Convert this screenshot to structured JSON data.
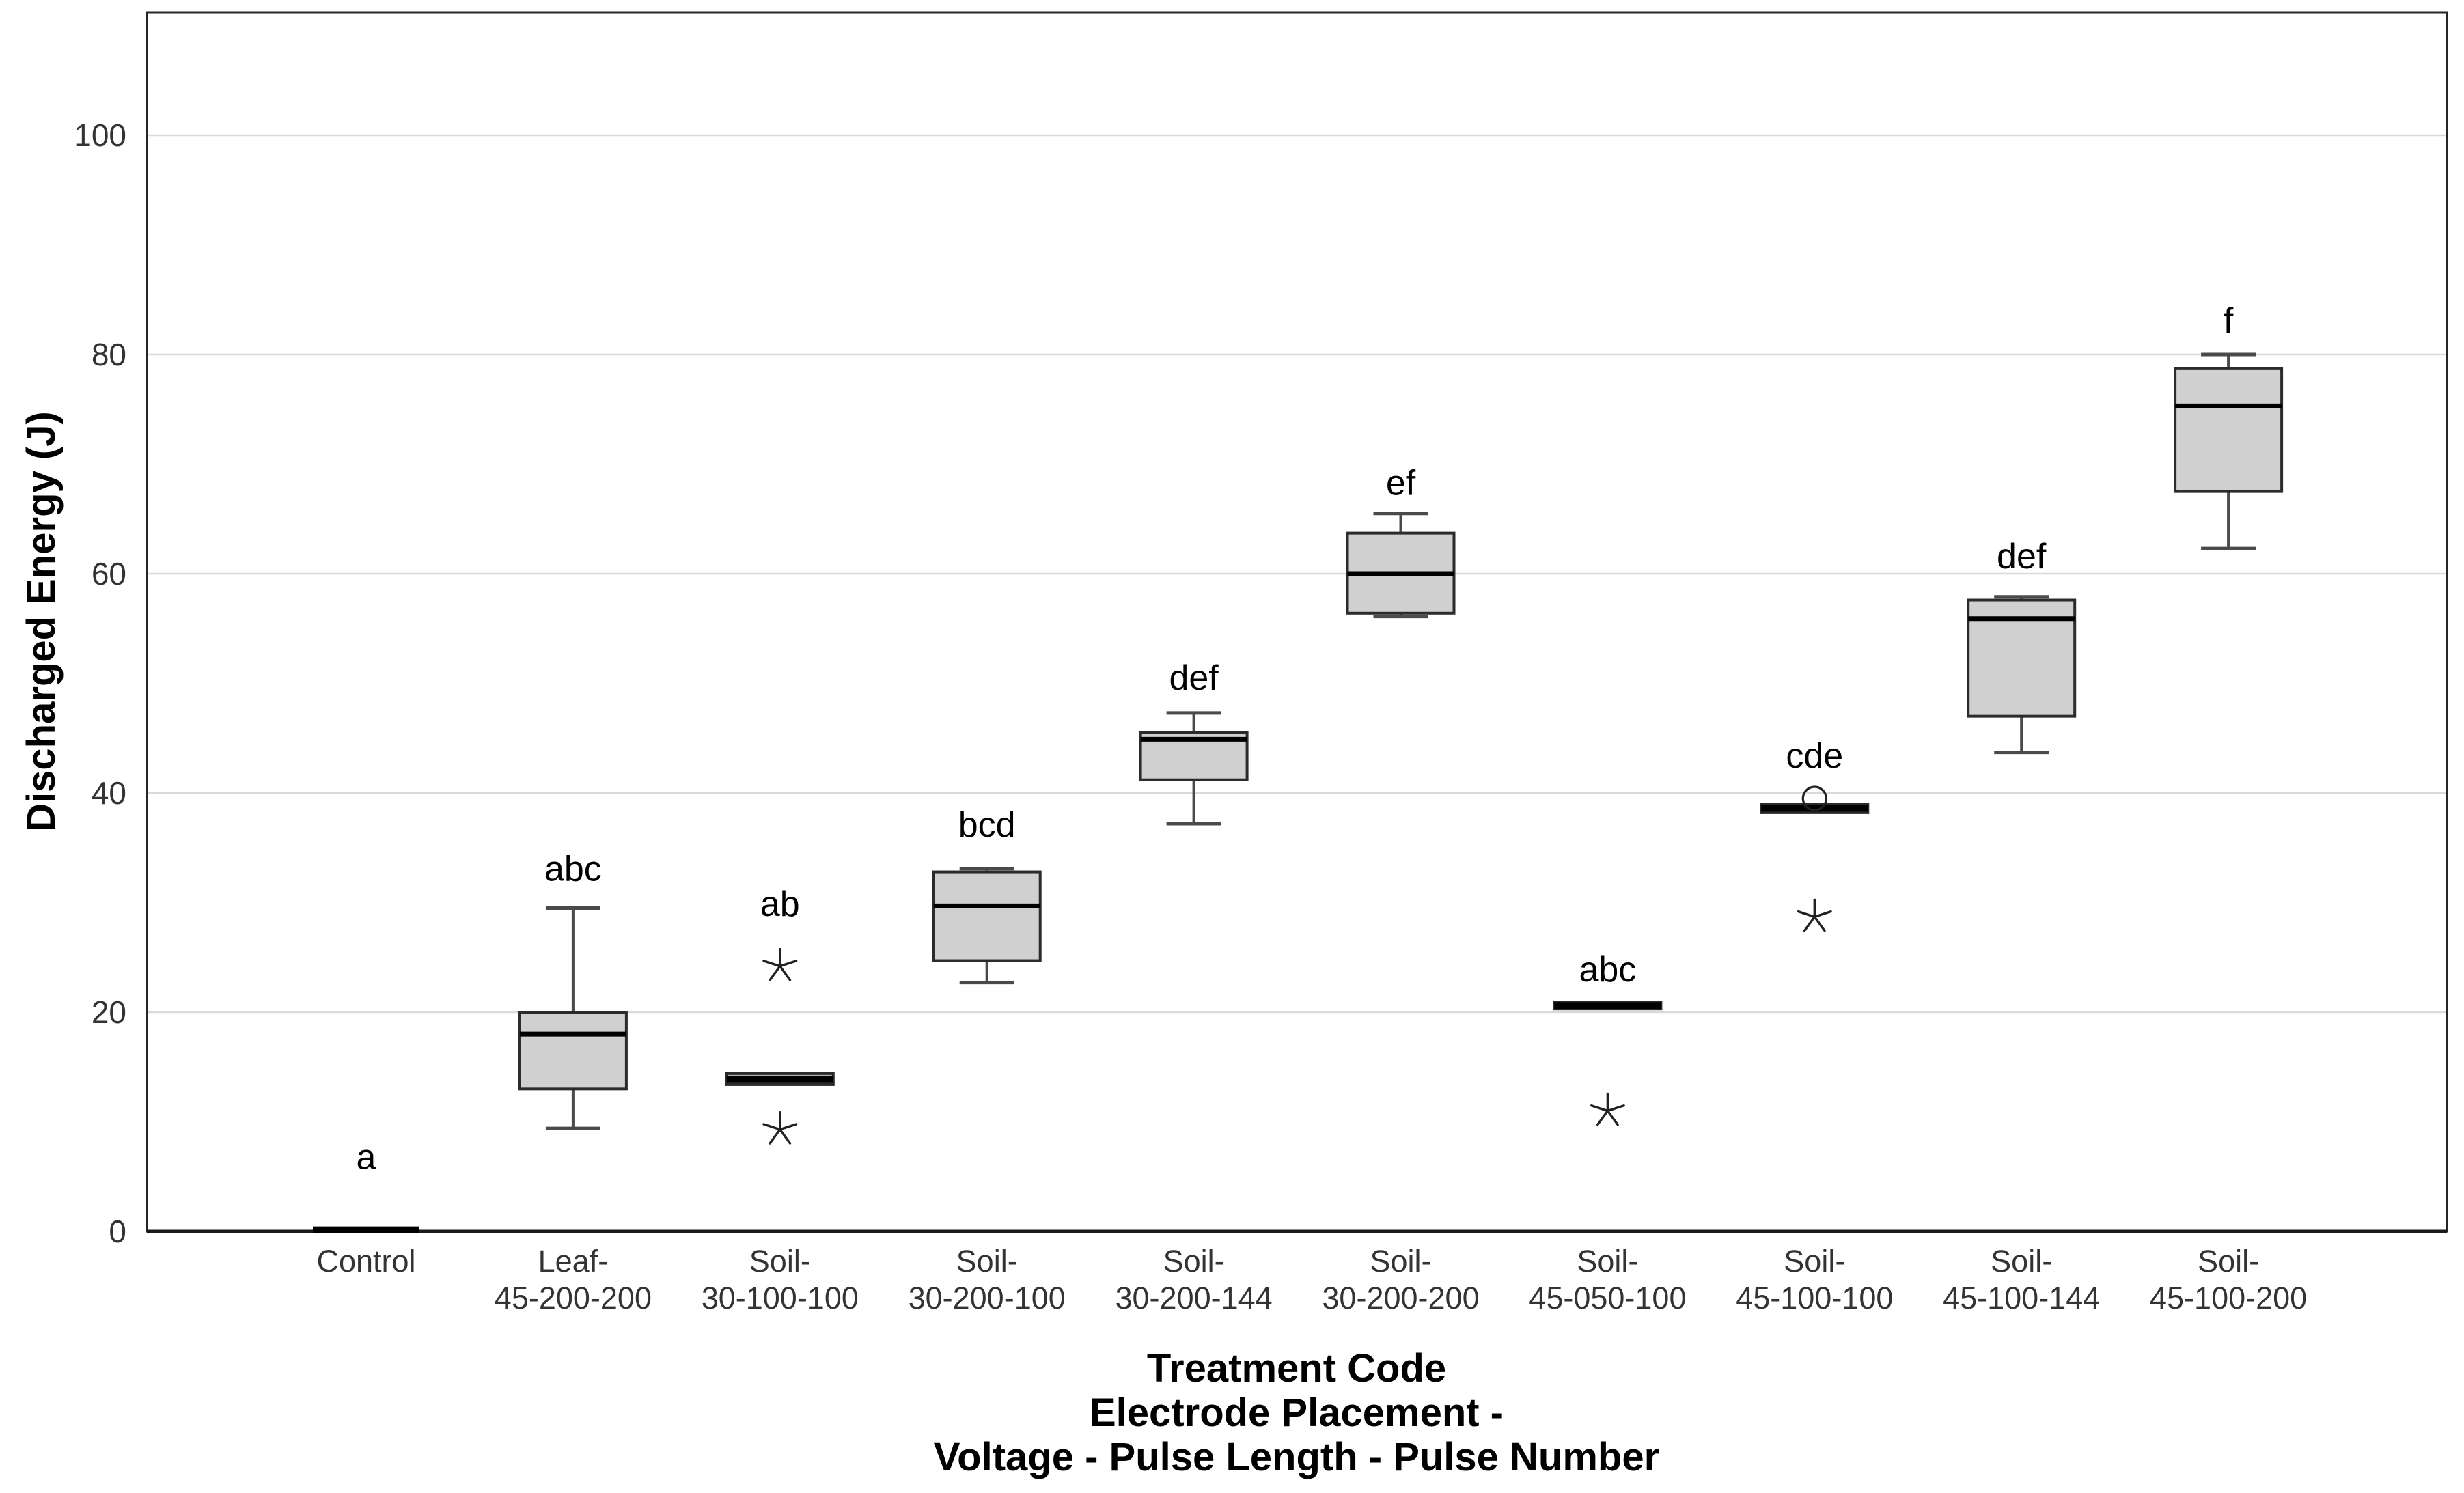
{
  "figure": {
    "kind": "boxplot-figure"
  },
  "chart_data": {
    "type": "boxplot",
    "title": "",
    "ylabel": "Discharged Energy (J)",
    "xlabel_lines": [
      "Treatment Code",
      "Electrode Placement -",
      "Voltage - Pulse Length - Pulse Number"
    ],
    "ylim": [
      0,
      111
    ],
    "yticks": [
      0,
      20,
      40,
      60,
      80,
      100
    ],
    "grid": "horizontal",
    "legend": "none",
    "colors": {
      "background": "#ffffff",
      "plot_border": "#262626",
      "axis_line": "#1a1a1a",
      "gridline": "#d9d9d9",
      "box_fill": "#d0d0d0",
      "box_border": "#2b2b2b",
      "median": "#000000",
      "whisker": "#4a4a4a",
      "outlier": "#222222",
      "tick_text": "#333333",
      "letter_text": "#000000"
    },
    "categories": [
      {
        "label_lines": [
          "Control"
        ],
        "letter": "a",
        "letter_y": 5.7,
        "box": {
          "min": 0.15,
          "q1": 0.15,
          "median": 0.15,
          "q3": 0.15,
          "max": 0.15
        },
        "collapsed": true,
        "outliers_star": [],
        "outliers_circle": []
      },
      {
        "label_lines": [
          "Leaf-",
          "45-200-200"
        ],
        "letter": "abc",
        "letter_y": 32.0,
        "box": {
          "min": 9.4,
          "q1": 13.0,
          "median": 18.0,
          "q3": 20.0,
          "max": 29.5
        },
        "collapsed": false,
        "outliers_star": [],
        "outliers_circle": []
      },
      {
        "label_lines": [
          "Soil-",
          "30-100-100"
        ],
        "letter": "ab",
        "letter_y": 28.8,
        "box": {
          "min": 13.4,
          "q1": 13.4,
          "median": 13.9,
          "q3": 14.4,
          "max": 14.4
        },
        "collapsed": true,
        "outliers_star": [
          24.2,
          9.3
        ],
        "outliers_circle": []
      },
      {
        "label_lines": [
          "Soil-",
          "30-200-100"
        ],
        "letter": "bcd",
        "letter_y": 36.0,
        "box": {
          "min": 22.7,
          "q1": 24.7,
          "median": 29.7,
          "q3": 32.8,
          "max": 33.1
        },
        "collapsed": false,
        "outliers_star": [],
        "outliers_circle": []
      },
      {
        "label_lines": [
          "Soil-",
          "30-200-144"
        ],
        "letter": "def",
        "letter_y": 49.4,
        "box": {
          "min": 37.2,
          "q1": 41.2,
          "median": 44.9,
          "q3": 45.5,
          "max": 47.3
        },
        "collapsed": false,
        "outliers_star": [],
        "outliers_circle": []
      },
      {
        "label_lines": [
          "Soil-",
          "30-200-200"
        ],
        "letter": "ef",
        "letter_y": 67.2,
        "box": {
          "min": 56.1,
          "q1": 56.4,
          "median": 60.0,
          "q3": 63.7,
          "max": 65.5
        },
        "collapsed": false,
        "outliers_star": [],
        "outliers_circle": []
      },
      {
        "label_lines": [
          "Soil-",
          "45-050-100"
        ],
        "letter": "abc",
        "letter_y": 22.8,
        "box": {
          "min": 20.3,
          "q1": 20.3,
          "median": 20.6,
          "q3": 20.9,
          "max": 20.9
        },
        "collapsed": true,
        "outliers_star": [
          11.0
        ],
        "outliers_circle": []
      },
      {
        "label_lines": [
          "Soil-",
          "45-100-100"
        ],
        "letter": "cde",
        "letter_y": 42.3,
        "box": {
          "min": 38.2,
          "q1": 38.2,
          "median": 38.6,
          "q3": 39.0,
          "max": 39.0
        },
        "collapsed": true,
        "outliers_star": [
          28.7
        ],
        "outliers_circle": [
          39.5
        ]
      },
      {
        "label_lines": [
          "Soil-",
          "45-100-144"
        ],
        "letter": "def",
        "letter_y": 60.5,
        "box": {
          "min": 43.7,
          "q1": 47.0,
          "median": 55.9,
          "q3": 57.6,
          "max": 57.9
        },
        "collapsed": false,
        "outliers_star": [],
        "outliers_circle": []
      },
      {
        "label_lines": [
          "Soil-",
          "45-100-200"
        ],
        "letter": "f",
        "letter_y": 82.0,
        "box": {
          "min": 62.3,
          "q1": 67.5,
          "median": 75.3,
          "q3": 78.7,
          "max": 80.0
        },
        "collapsed": false,
        "outliers_star": [],
        "outliers_circle": []
      }
    ]
  }
}
